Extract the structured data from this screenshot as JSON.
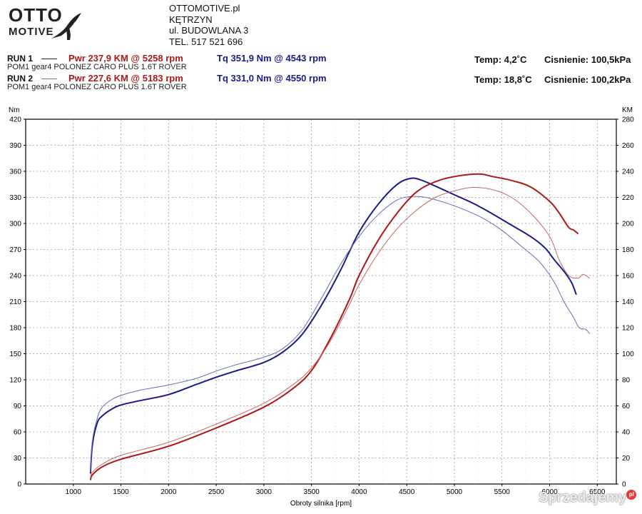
{
  "logo": {
    "line1": "OTTO",
    "line2": "MOTIVE"
  },
  "shop": {
    "lines": [
      "OTTOMOTIVE.pl",
      "KĘTRZYN",
      "ul. BUDOWLANA 3",
      "TEL. 517 521 696"
    ]
  },
  "runs": [
    {
      "label": "RUN 1",
      "desc": "POM1 gear4 POLONEZ CARO PLUS 1.6T ROVER",
      "pwr": "Pwr  237,9 KM @ 5258 rpm",
      "tq": "Tq 351,9 Nm @ 4543 rpm",
      "temp": "Temp: 4,2˚C",
      "pressure": "Cisnienie: 100,5kPa"
    },
    {
      "label": "RUN 2",
      "desc": "POM1 gear4 POLONEZ CARO PLUS 1.6T ROVER",
      "pwr": "Pwr  227,6 KM @ 5183 rpm",
      "tq": "Tq 331,0 Nm @ 4550 rpm",
      "temp": "Temp: 18,8˚C",
      "pressure": "Cisnienie: 100,2kPa"
    }
  ],
  "watermark": {
    "text": "Sprzedajemy",
    "badge": "pl"
  },
  "chart_data": {
    "type": "line",
    "xlabel": "Obroty silnika [rpm]",
    "ylabel_left": "Nm",
    "ylabel_right": "KM",
    "xlim": [
      500,
      6700
    ],
    "ylim_left": [
      0,
      420
    ],
    "ylim_right": [
      0,
      280
    ],
    "x_ticks": [
      1000,
      1500,
      2000,
      2500,
      3000,
      3500,
      4000,
      4500,
      5000,
      5500,
      6000,
      6500
    ],
    "y_left_ticks": [
      0,
      30,
      60,
      90,
      120,
      150,
      180,
      210,
      240,
      270,
      300,
      330,
      360,
      390,
      420
    ],
    "y_right_ticks": [
      0,
      20,
      40,
      60,
      80,
      100,
      120,
      140,
      160,
      180,
      200,
      220,
      240,
      260,
      280
    ],
    "grid": true,
    "series": [
      {
        "axis": "left",
        "color": "#1a1a8c",
        "width": 2.0,
        "points": [
          [
            1180,
            12
          ],
          [
            1200,
            45
          ],
          [
            1250,
            70
          ],
          [
            1300,
            78
          ],
          [
            1400,
            86
          ],
          [
            1500,
            91
          ],
          [
            1700,
            96
          ],
          [
            2000,
            103
          ],
          [
            2300,
            115
          ],
          [
            2500,
            123
          ],
          [
            2700,
            130
          ],
          [
            3000,
            140
          ],
          [
            3200,
            152
          ],
          [
            3400,
            172
          ],
          [
            3600,
            205
          ],
          [
            3800,
            245
          ],
          [
            4000,
            290
          ],
          [
            4200,
            322
          ],
          [
            4400,
            345
          ],
          [
            4543,
            351.9
          ],
          [
            4650,
            350
          ],
          [
            4800,
            343
          ],
          [
            5000,
            333
          ],
          [
            5200,
            323
          ],
          [
            5400,
            311
          ],
          [
            5600,
            298
          ],
          [
            5800,
            285
          ],
          [
            5950,
            272
          ],
          [
            6050,
            258
          ],
          [
            6150,
            245
          ],
          [
            6230,
            232
          ],
          [
            6280,
            218
          ]
        ]
      },
      {
        "axis": "left",
        "color": "#6a6ab8",
        "width": 1.0,
        "points": [
          [
            1180,
            14
          ],
          [
            1200,
            50
          ],
          [
            1250,
            75
          ],
          [
            1300,
            88
          ],
          [
            1400,
            97
          ],
          [
            1500,
            102
          ],
          [
            1700,
            108
          ],
          [
            2000,
            114
          ],
          [
            2300,
            122
          ],
          [
            2500,
            130
          ],
          [
            2700,
            137
          ],
          [
            3000,
            146
          ],
          [
            3200,
            156
          ],
          [
            3400,
            177
          ],
          [
            3600,
            213
          ],
          [
            3800,
            252
          ],
          [
            4000,
            285
          ],
          [
            4200,
            310
          ],
          [
            4400,
            327
          ],
          [
            4550,
            331
          ],
          [
            4700,
            330
          ],
          [
            4900,
            324
          ],
          [
            5100,
            316
          ],
          [
            5300,
            306
          ],
          [
            5500,
            292
          ],
          [
            5700,
            274
          ],
          [
            5900,
            255
          ],
          [
            6050,
            232
          ],
          [
            6150,
            210
          ],
          [
            6250,
            192
          ],
          [
            6310,
            180
          ],
          [
            6380,
            178
          ],
          [
            6420,
            173
          ]
        ]
      },
      {
        "axis": "right",
        "color": "#b01818",
        "width": 2.0,
        "points": [
          [
            1180,
            3
          ],
          [
            1200,
            7
          ],
          [
            1300,
            13
          ],
          [
            1500,
            19
          ],
          [
            2000,
            29
          ],
          [
            2500,
            43
          ],
          [
            3000,
            59
          ],
          [
            3300,
            73
          ],
          [
            3500,
            87
          ],
          [
            3700,
            112
          ],
          [
            3900,
            142
          ],
          [
            4000,
            160
          ],
          [
            4200,
            187
          ],
          [
            4400,
            208
          ],
          [
            4600,
            224
          ],
          [
            4800,
            232
          ],
          [
            5000,
            236
          ],
          [
            5258,
            237.9
          ],
          [
            5400,
            236
          ],
          [
            5600,
            233
          ],
          [
            5800,
            228
          ],
          [
            6000,
            217
          ],
          [
            6100,
            208
          ],
          [
            6200,
            197
          ],
          [
            6250,
            195
          ],
          [
            6300,
            192
          ]
        ]
      },
      {
        "axis": "right",
        "color": "#c86464",
        "width": 1.0,
        "points": [
          [
            1180,
            5
          ],
          [
            1200,
            9
          ],
          [
            1300,
            15
          ],
          [
            1500,
            22
          ],
          [
            2000,
            32
          ],
          [
            2500,
            46
          ],
          [
            3000,
            62
          ],
          [
            3300,
            76
          ],
          [
            3500,
            89
          ],
          [
            3700,
            110
          ],
          [
            3900,
            138
          ],
          [
            4000,
            153
          ],
          [
            4200,
            177
          ],
          [
            4400,
            196
          ],
          [
            4600,
            210
          ],
          [
            4800,
            220
          ],
          [
            5000,
            225
          ],
          [
            5183,
            227.6
          ],
          [
            5400,
            226
          ],
          [
            5600,
            220
          ],
          [
            5800,
            208
          ],
          [
            6000,
            190
          ],
          [
            6100,
            172
          ],
          [
            6200,
            160
          ],
          [
            6300,
            158
          ],
          [
            6350,
            161
          ],
          [
            6420,
            158
          ]
        ]
      }
    ]
  }
}
